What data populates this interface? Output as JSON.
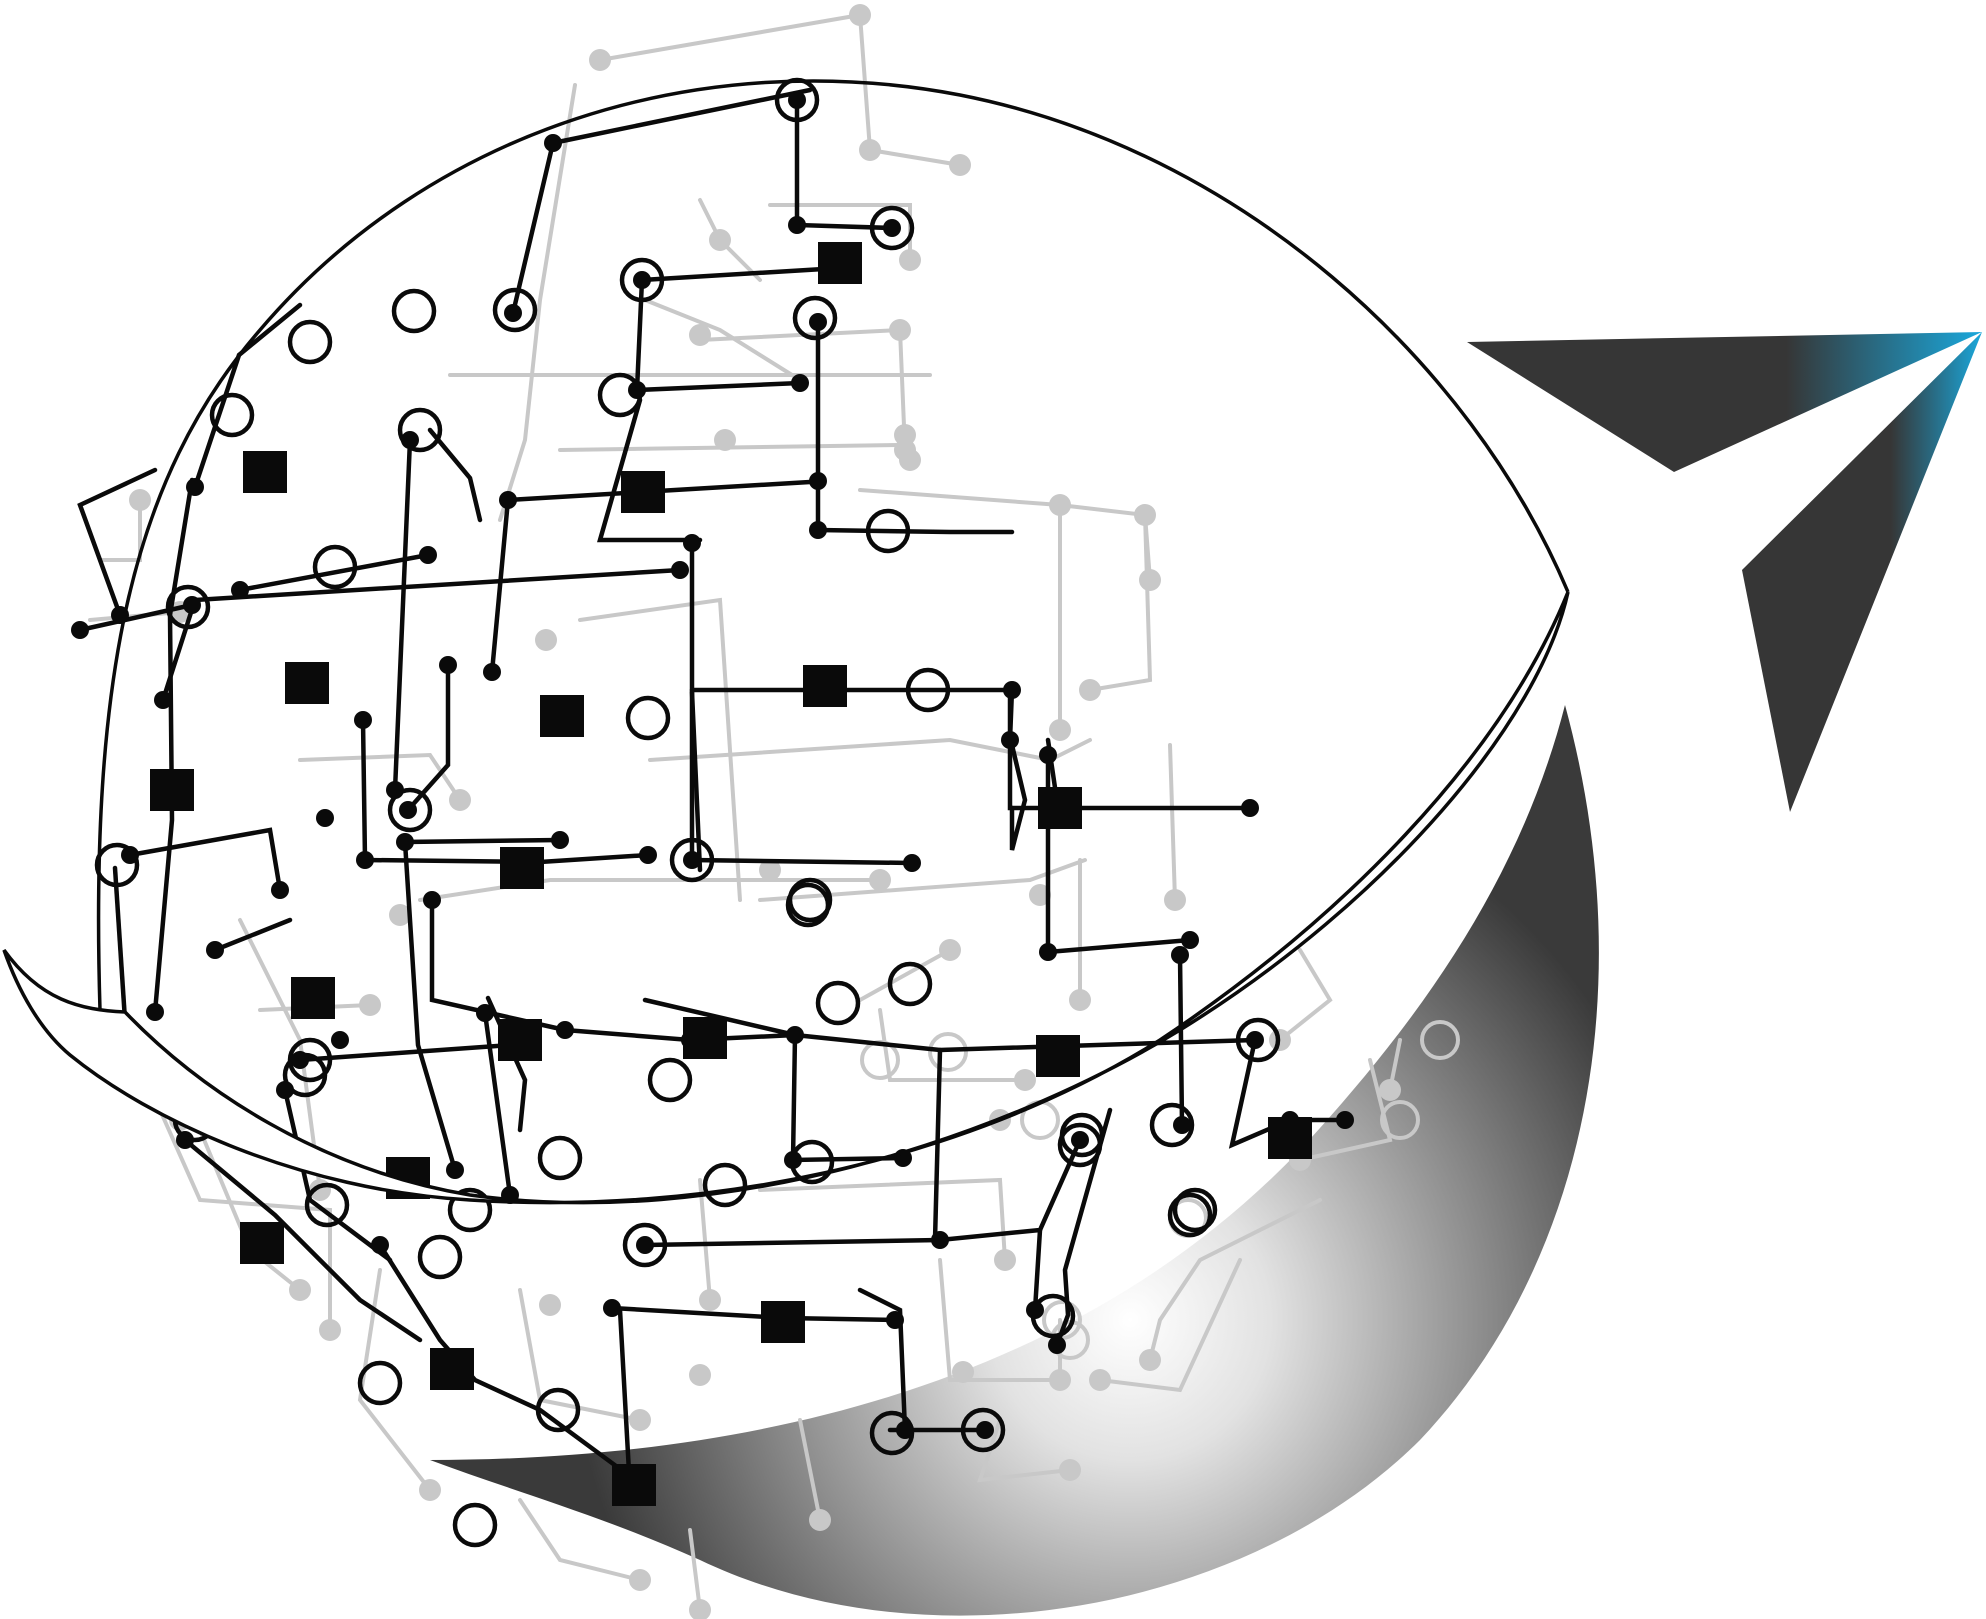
{
  "artwork": {
    "subject": "circuit-globe-with-paper-plane",
    "colors": {
      "background": "#ffffff",
      "ink": "#0a0a0a",
      "faint_ink": "#c8c8c8",
      "plane_dark": "#363636",
      "plane_accent": "#1aa8dc",
      "swoosh_dark": "#3a3a3a",
      "swoosh_light": "#ffffff"
    },
    "icons": [
      "globe-icon",
      "paper-plane-icon",
      "circuit-icon"
    ]
  }
}
